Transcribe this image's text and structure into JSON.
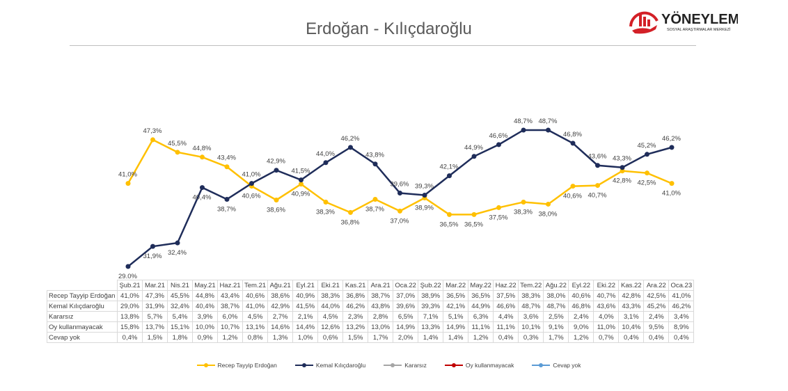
{
  "logo": {
    "name": "YÖNEYLEM",
    "subtitle": "SOSYAL ARAŞTIRMALAR MERKEZİ"
  },
  "chart_data": {
    "type": "line",
    "title": "Erdoğan - Kılıçdaroğlu",
    "categories": [
      "Şub.21",
      "Mar.21",
      "Nis.21",
      "May.21",
      "Haz.21",
      "Tem.21",
      "Ağu.21",
      "Eyl.21",
      "Eki.21",
      "Kas.21",
      "Ara.21",
      "Oca.22",
      "Şub.22",
      "Mar.22",
      "May.22",
      "Haz.22",
      "Tem.22",
      "Ağu.22",
      "Eyl.22",
      "Eki.22",
      "Kas.22",
      "Ara.22",
      "Oca.23"
    ],
    "series": [
      {
        "name": "Recep Tayyip Erdoğan",
        "color": "#FFC000",
        "plotted": true,
        "values": [
          41.0,
          47.3,
          45.5,
          44.8,
          43.4,
          40.6,
          38.6,
          40.9,
          38.3,
          36.8,
          38.7,
          37.0,
          38.9,
          36.5,
          36.5,
          37.5,
          38.3,
          38.0,
          40.6,
          40.7,
          42.8,
          42.5,
          41.0
        ]
      },
      {
        "name": "Kemal Kılıçdaroğlu",
        "color": "#1F2D5A",
        "plotted": true,
        "values": [
          29.0,
          31.9,
          32.4,
          40.4,
          38.7,
          41.0,
          42.9,
          41.5,
          44.0,
          46.2,
          43.8,
          39.6,
          39.3,
          42.1,
          44.9,
          46.6,
          48.7,
          48.7,
          46.8,
          43.6,
          43.3,
          45.2,
          46.2
        ]
      },
      {
        "name": "Kararsız",
        "color": "#A5A5A5",
        "plotted": false,
        "values": [
          13.8,
          5.7,
          5.4,
          3.9,
          6.0,
          4.5,
          2.7,
          2.1,
          4.5,
          2.3,
          2.8,
          6.5,
          7.1,
          5.1,
          6.3,
          4.4,
          3.6,
          2.5,
          2.4,
          4.0,
          3.1,
          2.4,
          3.4
        ]
      },
      {
        "name": "Oy kullanmayacak",
        "color": "#C00000",
        "plotted": false,
        "values": [
          15.8,
          13.7,
          15.1,
          10.0,
          10.7,
          13.1,
          14.6,
          14.4,
          12.6,
          13.2,
          13.0,
          14.9,
          13.3,
          14.9,
          11.1,
          11.1,
          10.1,
          9.1,
          9.0,
          11.0,
          10.4,
          9.5,
          8.9
        ]
      },
      {
        "name": "Cevap yok",
        "color": "#5B9BD5",
        "plotted": false,
        "values": [
          0.4,
          1.5,
          1.8,
          0.9,
          1.2,
          0.8,
          1.3,
          1.0,
          0.6,
          1.5,
          1.7,
          2.0,
          1.4,
          1.4,
          1.2,
          0.4,
          0.3,
          1.7,
          1.2,
          0.7,
          0.4,
          0.4,
          0.4
        ]
      }
    ],
    "grid": false,
    "legend": "bottom",
    "data_table": true
  }
}
